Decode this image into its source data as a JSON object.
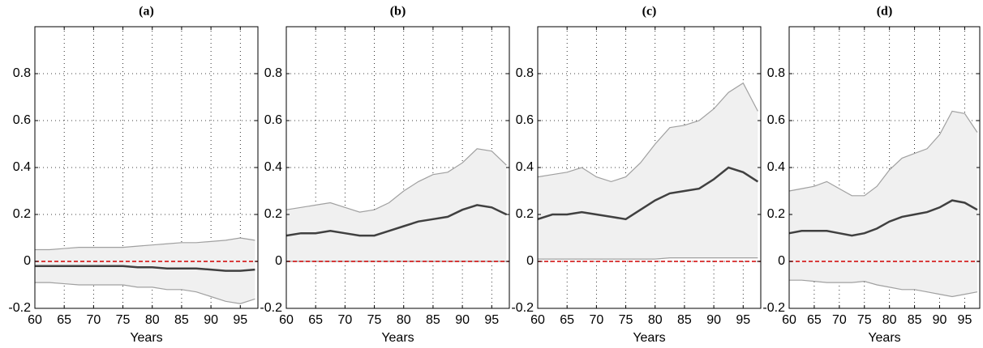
{
  "chart_data": [
    {
      "type": "line",
      "title": "(a)",
      "xlabel": "Years",
      "x": [
        60,
        62.5,
        65,
        67.5,
        70,
        72.5,
        75,
        77.5,
        80,
        82.5,
        85,
        87.5,
        90,
        92.5,
        95,
        97.5
      ],
      "band": {
        "fill": "#f0f0f0",
        "color": "#a0a0a0",
        "upper": [
          0.05,
          0.05,
          0.055,
          0.06,
          0.06,
          0.06,
          0.06,
          0.065,
          0.07,
          0.075,
          0.08,
          0.08,
          0.085,
          0.09,
          0.1,
          0.09
        ],
        "lower": [
          -0.09,
          -0.09,
          -0.095,
          -0.1,
          -0.1,
          -0.1,
          -0.1,
          -0.11,
          -0.11,
          -0.12,
          -0.12,
          -0.13,
          -0.15,
          -0.17,
          -0.18,
          -0.16
        ]
      },
      "series": [
        {
          "color": "#404040",
          "values": [
            -0.02,
            -0.02,
            -0.02,
            -0.02,
            -0.02,
            -0.02,
            -0.02,
            -0.025,
            -0.025,
            -0.03,
            -0.03,
            -0.03,
            -0.035,
            -0.04,
            -0.04,
            -0.035
          ]
        }
      ],
      "reference_line": {
        "value": 0,
        "color": "#d00000"
      },
      "xlim": [
        60,
        98
      ],
      "xticks": [
        60,
        65,
        70,
        75,
        80,
        85,
        90,
        95
      ],
      "ylim": [
        -0.2,
        1.0
      ],
      "yticks": [
        -0.2,
        0,
        0.2,
        0.4,
        0.6,
        0.8
      ],
      "grid": true
    },
    {
      "type": "line",
      "title": "(b)",
      "xlabel": "Years",
      "x": [
        60,
        62.5,
        65,
        67.5,
        70,
        72.5,
        75,
        77.5,
        80,
        82.5,
        85,
        87.5,
        90,
        92.5,
        95,
        97.5
      ],
      "band": {
        "fill": "#f0f0f0",
        "color": "#a0a0a0",
        "upper": [
          0.22,
          0.23,
          0.24,
          0.25,
          0.23,
          0.21,
          0.22,
          0.25,
          0.3,
          0.34,
          0.37,
          0.38,
          0.42,
          0.48,
          0.47,
          0.41
        ],
        "lower": [
          0,
          0,
          0,
          0,
          0,
          0,
          0,
          0,
          0,
          0,
          0,
          0,
          0,
          0,
          0,
          0
        ]
      },
      "series": [
        {
          "color": "#404040",
          "values": [
            0.11,
            0.12,
            0.12,
            0.13,
            0.12,
            0.11,
            0.11,
            0.13,
            0.15,
            0.17,
            0.18,
            0.19,
            0.22,
            0.24,
            0.23,
            0.2
          ]
        }
      ],
      "reference_line": {
        "value": 0,
        "color": "#d00000"
      },
      "xlim": [
        60,
        98
      ],
      "xticks": [
        60,
        65,
        70,
        75,
        80,
        85,
        90,
        95
      ],
      "ylim": [
        -0.2,
        1.0
      ],
      "yticks": [
        -0.2,
        0,
        0.2,
        0.4,
        0.6,
        0.8
      ],
      "grid": true
    },
    {
      "type": "line",
      "title": "(c)",
      "xlabel": "Years",
      "x": [
        60,
        62.5,
        65,
        67.5,
        70,
        72.5,
        75,
        77.5,
        80,
        82.5,
        85,
        87.5,
        90,
        92.5,
        95,
        97.5
      ],
      "band": {
        "fill": "#f0f0f0",
        "color": "#a0a0a0",
        "upper": [
          0.36,
          0.37,
          0.38,
          0.4,
          0.36,
          0.34,
          0.36,
          0.42,
          0.5,
          0.57,
          0.58,
          0.6,
          0.65,
          0.72,
          0.76,
          0.64
        ],
        "lower": [
          0.01,
          0.01,
          0.01,
          0.01,
          0.01,
          0.01,
          0.01,
          0.01,
          0.01,
          0.015,
          0.015,
          0.015,
          0.015,
          0.015,
          0.015,
          0.015
        ]
      },
      "series": [
        {
          "color": "#404040",
          "values": [
            0.18,
            0.2,
            0.2,
            0.21,
            0.2,
            0.19,
            0.18,
            0.22,
            0.26,
            0.29,
            0.3,
            0.31,
            0.35,
            0.4,
            0.38,
            0.34
          ]
        }
      ],
      "reference_line": {
        "value": 0,
        "color": "#d00000"
      },
      "xlim": [
        60,
        98
      ],
      "xticks": [
        60,
        65,
        70,
        75,
        80,
        85,
        90,
        95
      ],
      "ylim": [
        -0.2,
        1.0
      ],
      "yticks": [
        -0.2,
        0,
        0.2,
        0.4,
        0.6,
        0.8
      ],
      "grid": true
    },
    {
      "type": "line",
      "title": "(d)",
      "xlabel": "Years",
      "x": [
        60,
        62.5,
        65,
        67.5,
        70,
        72.5,
        75,
        77.5,
        80,
        82.5,
        85,
        87.5,
        90,
        92.5,
        95,
        97.5
      ],
      "band": {
        "fill": "#f0f0f0",
        "color": "#a0a0a0",
        "upper": [
          0.3,
          0.31,
          0.32,
          0.34,
          0.31,
          0.28,
          0.28,
          0.32,
          0.39,
          0.44,
          0.46,
          0.48,
          0.54,
          0.64,
          0.63,
          0.55
        ],
        "lower": [
          -0.08,
          -0.08,
          -0.085,
          -0.09,
          -0.09,
          -0.09,
          -0.085,
          -0.1,
          -0.11,
          -0.12,
          -0.12,
          -0.13,
          -0.14,
          -0.15,
          -0.14,
          -0.13
        ]
      },
      "series": [
        {
          "color": "#404040",
          "values": [
            0.12,
            0.13,
            0.13,
            0.13,
            0.12,
            0.11,
            0.12,
            0.14,
            0.17,
            0.19,
            0.2,
            0.21,
            0.23,
            0.26,
            0.25,
            0.22
          ]
        }
      ],
      "reference_line": {
        "value": 0,
        "color": "#d00000"
      },
      "xlim": [
        60,
        98
      ],
      "xticks": [
        60,
        65,
        70,
        75,
        80,
        85,
        90,
        95
      ],
      "ylim": [
        -0.2,
        1.0
      ],
      "yticks": [
        -0.2,
        0,
        0.2,
        0.4,
        0.6,
        0.8
      ],
      "grid": true
    }
  ]
}
